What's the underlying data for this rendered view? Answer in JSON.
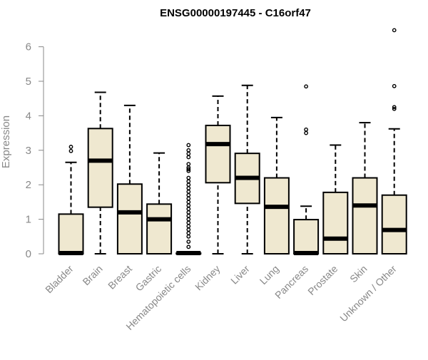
{
  "colors": {
    "box_fill": "#efe8d0",
    "box_stroke": "#000000",
    "axis": "#888888",
    "label": "#888888",
    "title": "#000000"
  },
  "chart_data": {
    "type": "boxplot",
    "title": "ENSG00000197445 - C16orf47",
    "xlabel": "",
    "ylabel": "Expression",
    "ylim": [
      0,
      6
    ],
    "yticks": [
      0,
      1,
      2,
      3,
      4,
      5,
      6
    ],
    "grid": false,
    "legend": "none",
    "categories": [
      "Bladder",
      "Brain",
      "Breast",
      "Gastric",
      "Hematopoietic cells",
      "Kidney",
      "Liver",
      "Lung",
      "Pancreas",
      "Prostate",
      "Skin",
      "Unknown / Other"
    ],
    "boxes": [
      {
        "min": 0,
        "q1": 0,
        "median": 0.02,
        "q3": 1.15,
        "max": 2.65,
        "outliers": [
          2.98,
          3.1
        ]
      },
      {
        "min": 0,
        "q1": 1.35,
        "median": 2.7,
        "q3": 3.63,
        "max": 4.68,
        "outliers": []
      },
      {
        "min": 0,
        "q1": 0,
        "median": 1.2,
        "q3": 2.02,
        "max": 4.3,
        "outliers": []
      },
      {
        "min": 0,
        "q1": 0,
        "median": 1.0,
        "q3": 1.44,
        "max": 2.92,
        "outliers": []
      },
      {
        "min": 0,
        "q1": 0,
        "median": 0.02,
        "q3": 0.02,
        "max": 0.02,
        "outliers": [
          0.2,
          0.35,
          0.5,
          0.6,
          0.7,
          0.8,
          0.9,
          1.0,
          1.1,
          1.2,
          1.3,
          1.4,
          1.5,
          1.6,
          1.7,
          1.8,
          1.9,
          2.0,
          2.1,
          2.2,
          2.4,
          2.45,
          2.5,
          2.6,
          2.8,
          2.9,
          3.0,
          3.15
        ]
      },
      {
        "min": 0,
        "q1": 2.06,
        "median": 3.18,
        "q3": 3.72,
        "max": 4.57,
        "outliers": []
      },
      {
        "min": 0,
        "q1": 1.46,
        "median": 2.2,
        "q3": 2.91,
        "max": 4.88,
        "outliers": []
      },
      {
        "min": 0,
        "q1": 0,
        "median": 1.36,
        "q3": 2.2,
        "max": 3.95,
        "outliers": []
      },
      {
        "min": 0,
        "q1": 0,
        "median": 0.02,
        "q3": 0.99,
        "max": 1.38,
        "outliers": [
          3.5,
          3.6,
          4.85
        ]
      },
      {
        "min": 0,
        "q1": 0,
        "median": 0.44,
        "q3": 1.78,
        "max": 3.15,
        "outliers": []
      },
      {
        "min": 0,
        "q1": 0,
        "median": 1.4,
        "q3": 2.2,
        "max": 3.8,
        "outliers": []
      },
      {
        "min": 0,
        "q1": 0,
        "median": 0.69,
        "q3": 1.7,
        "max": 3.62,
        "outliers": [
          4.2,
          4.25,
          4.86,
          6.48
        ]
      }
    ]
  }
}
